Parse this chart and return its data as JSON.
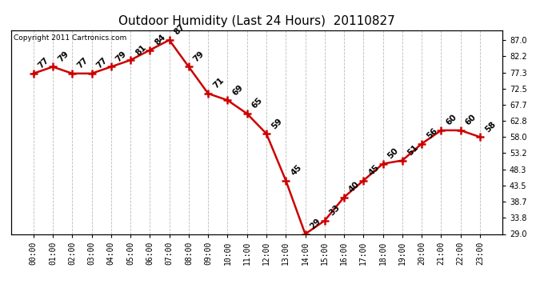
{
  "title": "Outdoor Humidity (Last 24 Hours)  20110827",
  "copyright": "Copyright 2011 Cartronics.com",
  "hours": [
    "00:00",
    "01:00",
    "02:00",
    "03:00",
    "04:00",
    "05:00",
    "06:00",
    "07:00",
    "08:00",
    "09:00",
    "10:00",
    "11:00",
    "12:00",
    "13:00",
    "14:00",
    "15:00",
    "16:00",
    "17:00",
    "18:00",
    "19:00",
    "20:00",
    "21:00",
    "22:00",
    "23:00"
  ],
  "values": [
    77,
    79,
    77,
    77,
    79,
    81,
    84,
    87,
    79,
    71,
    69,
    65,
    59,
    45,
    29,
    33,
    40,
    45,
    50,
    51,
    56,
    60,
    60,
    58
  ],
  "line_color": "#cc0000",
  "marker_color": "#cc0000",
  "background_color": "#ffffff",
  "grid_color": "#bbbbbb",
  "ylim": [
    29.0,
    90.0
  ],
  "yticks_right": [
    87.0,
    82.2,
    77.3,
    72.5,
    67.7,
    62.8,
    58.0,
    53.2,
    48.3,
    43.5,
    38.7,
    33.8,
    29.0
  ],
  "title_fontsize": 11,
  "annot_fontsize": 7.5,
  "tick_fontsize": 7,
  "copyright_fontsize": 6.5
}
